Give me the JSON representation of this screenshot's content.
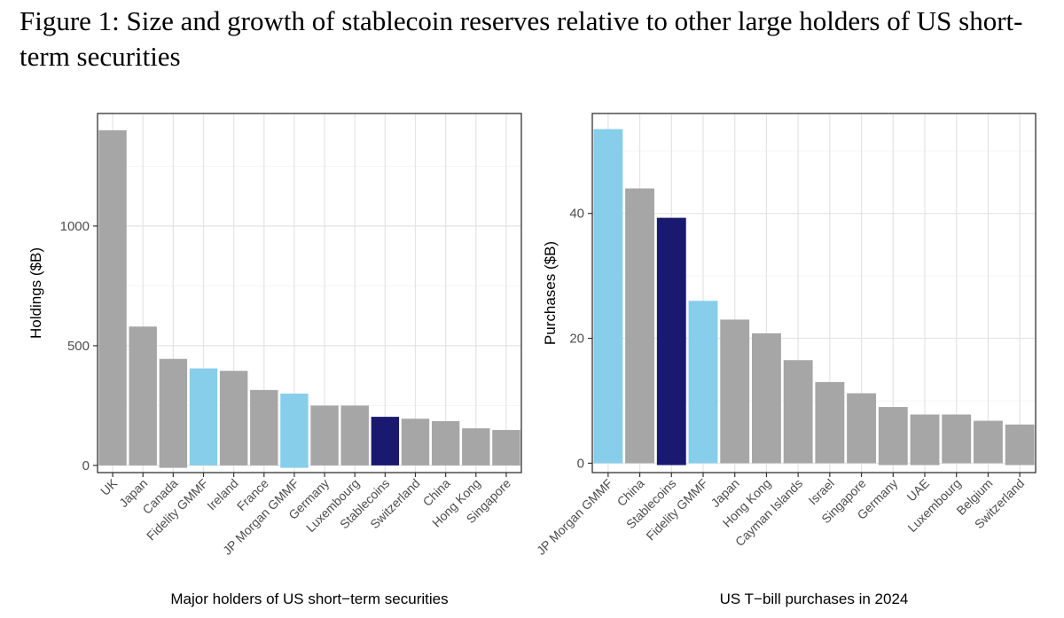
{
  "figure": {
    "title": "Figure 1: Size and growth of stablecoin reserves relative to other large holders of US short-term securities"
  },
  "colors": {
    "gray": "#a6a6a6",
    "light_blue": "#87ceeb",
    "navy": "#191970"
  },
  "chart_data": [
    {
      "type": "bar",
      "xlabel": "Major holders of US short−term securities",
      "ylabel": "Holdings ($B)",
      "ylim": [
        -30,
        1470
      ],
      "yticks": [
        0,
        500,
        1000
      ],
      "grid": true,
      "categories": [
        "UK",
        "Japan",
        "Canada",
        "Fidelity GMMF",
        "Ireland",
        "France",
        "JP Morgan GMMF",
        "Germany",
        "Luxembourg",
        "Stablecoins",
        "Switzerland",
        "China",
        "Hong Kong",
        "Singapore"
      ],
      "values": [
        1400,
        580,
        445,
        405,
        395,
        315,
        300,
        250,
        250,
        203,
        195,
        185,
        155,
        148
      ],
      "value_min": [
        0,
        0,
        -10,
        0,
        0,
        0,
        -10,
        0,
        0,
        0,
        0,
        0,
        0,
        0
      ],
      "bar_colors": [
        "gray",
        "gray",
        "gray",
        "light_blue",
        "gray",
        "gray",
        "light_blue",
        "gray",
        "gray",
        "navy",
        "gray",
        "gray",
        "gray",
        "gray"
      ]
    },
    {
      "type": "bar",
      "xlabel": "US T−bill purchases in 2024",
      "ylabel": "Purchases ($B)",
      "ylim": [
        -1.5,
        56
      ],
      "yticks": [
        0,
        20,
        40
      ],
      "grid": true,
      "categories": [
        "JP Morgan GMMF",
        "China",
        "Stablecoins",
        "Fidelity GMMF",
        "Japan",
        "Hong Kong",
        "Cayman Islands",
        "Israel",
        "Singapore",
        "Germany",
        "UAE",
        "Luxembourg",
        "Belgium",
        "Switzerland"
      ],
      "values": [
        53.5,
        44,
        39.3,
        26,
        23,
        20.8,
        16.5,
        13,
        11.2,
        9,
        7.8,
        7.8,
        6.8,
        6.2
      ],
      "value_min": [
        0,
        0,
        -0.3,
        0,
        0,
        0,
        0,
        0,
        0,
        -0.3,
        -0.3,
        0,
        0,
        -0.3
      ],
      "bar_colors": [
        "light_blue",
        "gray",
        "navy",
        "light_blue",
        "gray",
        "gray",
        "gray",
        "gray",
        "gray",
        "gray",
        "gray",
        "gray",
        "gray",
        "gray"
      ]
    }
  ]
}
